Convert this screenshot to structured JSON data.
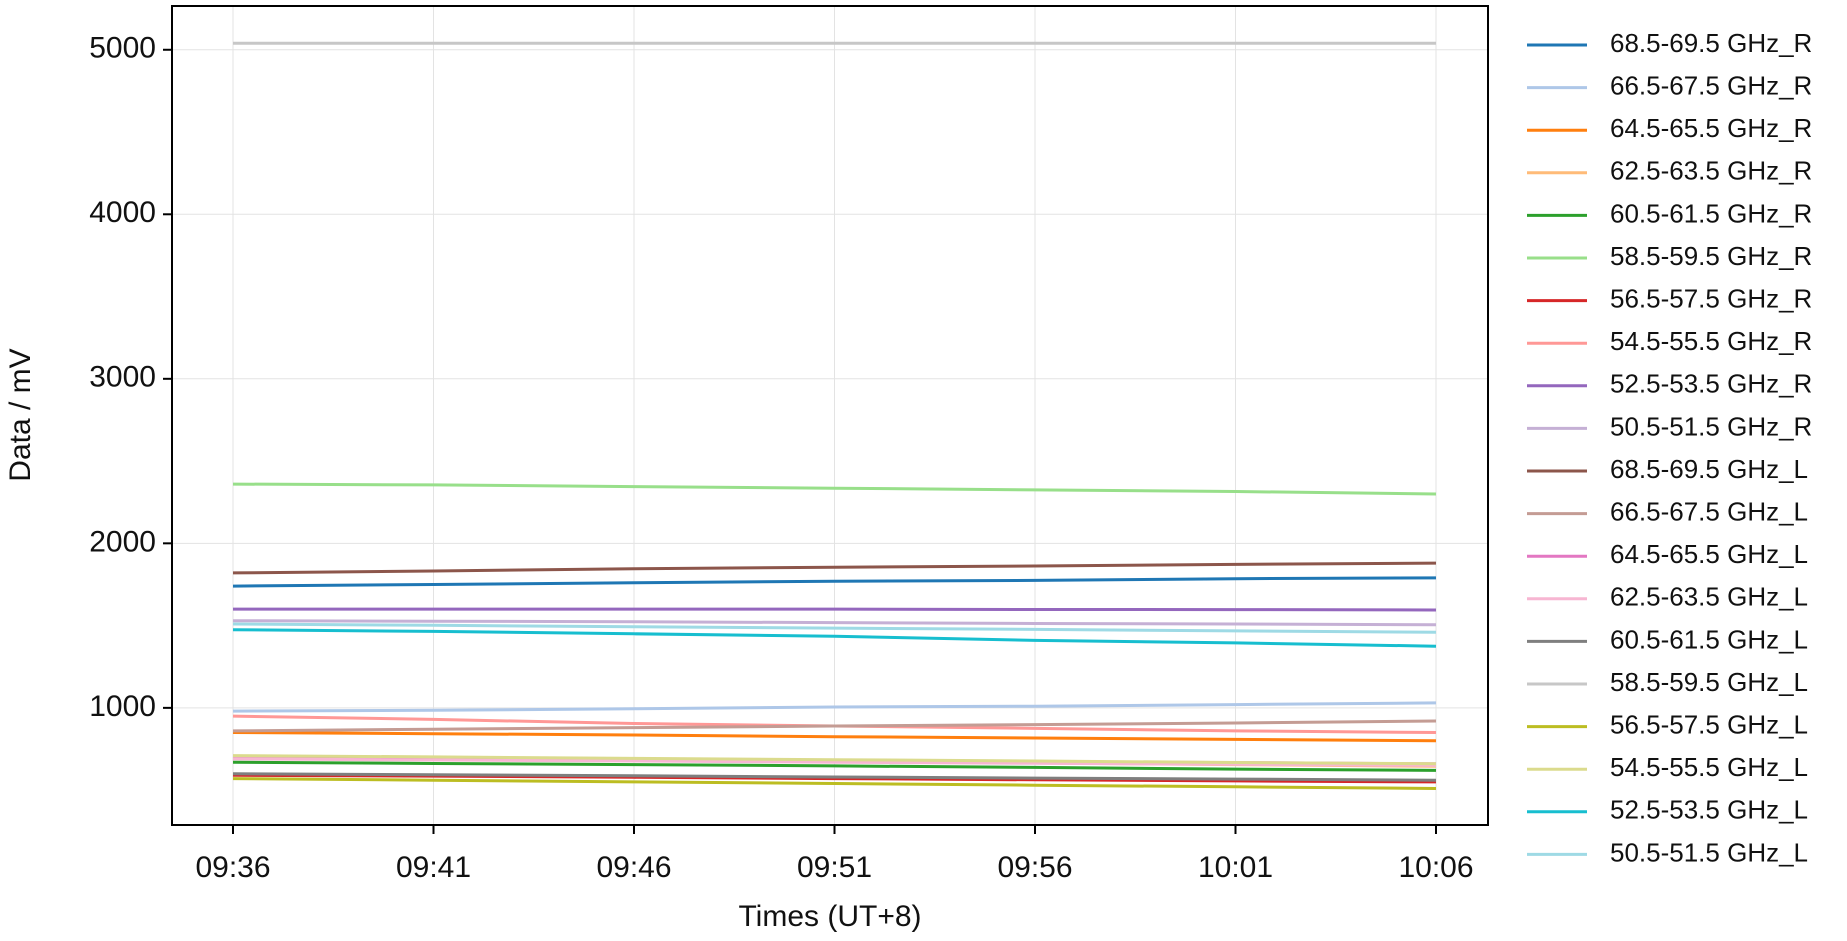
{
  "chart_data": {
    "type": "line",
    "x_label": "Times (UT+8)",
    "y_label": "Data / mV",
    "categories": [
      "09:36",
      "09:41",
      "09:46",
      "09:51",
      "09:56",
      "10:01",
      "10:06"
    ],
    "ylim": [
      288,
      5266
    ],
    "yticks": [
      1000,
      2000,
      3000,
      4000,
      5000
    ],
    "grid": true,
    "legend": "outside-right",
    "series": [
      {
        "name": "68.5-69.5 GHz_R",
        "color": "#1f77b4",
        "values": [
          1740,
          1750,
          1760,
          1770,
          1775,
          1785,
          1790
        ]
      },
      {
        "name": "66.5-67.5 GHz_R",
        "color": "#aec7e8",
        "values": [
          980,
          985,
          995,
          1005,
          1010,
          1020,
          1030
        ]
      },
      {
        "name": "64.5-65.5 GHz_R",
        "color": "#ff7f0e",
        "values": [
          850,
          843,
          835,
          825,
          817,
          808,
          800
        ]
      },
      {
        "name": "62.5-63.5 GHz_R",
        "color": "#ffbb78",
        "values": [
          700,
          690,
          680,
          672,
          665,
          655,
          645
        ]
      },
      {
        "name": "60.5-61.5 GHz_R",
        "color": "#2ca02c",
        "values": [
          670,
          662,
          655,
          647,
          638,
          628,
          620
        ]
      },
      {
        "name": "58.5-59.5 GHz_R",
        "color": "#98df8a",
        "values": [
          2360,
          2355,
          2345,
          2335,
          2325,
          2315,
          2300
        ]
      },
      {
        "name": "56.5-57.5 GHz_R",
        "color": "#d62728",
        "values": [
          590,
          585,
          578,
          570,
          563,
          556,
          550
        ]
      },
      {
        "name": "54.5-55.5 GHz_R",
        "color": "#ff9896",
        "values": [
          950,
          930,
          905,
          890,
          875,
          860,
          850
        ]
      },
      {
        "name": "52.5-53.5 GHz_R",
        "color": "#9467bd",
        "values": [
          1600,
          1600,
          1600,
          1600,
          1598,
          1597,
          1595
        ]
      },
      {
        "name": "50.5-51.5 GHz_R",
        "color": "#c5b0d5",
        "values": [
          1530,
          1527,
          1523,
          1518,
          1513,
          1510,
          1505
        ]
      },
      {
        "name": "68.5-69.5 GHz_L",
        "color": "#8c564b",
        "values": [
          1820,
          1832,
          1845,
          1855,
          1862,
          1872,
          1880
        ]
      },
      {
        "name": "66.5-67.5 GHz_L",
        "color": "#c49c94",
        "values": [
          860,
          870,
          880,
          890,
          898,
          908,
          920
        ]
      },
      {
        "name": "64.5-65.5 GHz_L",
        "color": "#e377c2",
        "values": [
          700,
          693,
          687,
          680,
          673,
          667,
          660
        ]
      },
      {
        "name": "62.5-63.5 GHz_L",
        "color": "#f7b6d2",
        "values": [
          690,
          683,
          677,
          670,
          663,
          657,
          650
        ]
      },
      {
        "name": "60.5-61.5 GHz_L",
        "color": "#7f7f7f",
        "values": [
          600,
          593,
          587,
          580,
          573,
          567,
          560
        ]
      },
      {
        "name": "58.5-59.5 GHz_L",
        "color": "#c7c7c7",
        "values": [
          5040,
          5040,
          5040,
          5040,
          5040,
          5040,
          5040
        ]
      },
      {
        "name": "56.5-57.5 GHz_L",
        "color": "#bcbd22",
        "values": [
          570,
          560,
          550,
          540,
          530,
          520,
          510
        ]
      },
      {
        "name": "54.5-55.5 GHz_L",
        "color": "#dbdb8d",
        "values": [
          710,
          702,
          693,
          685,
          677,
          668,
          660
        ]
      },
      {
        "name": "52.5-53.5 GHz_L",
        "color": "#17becf",
        "values": [
          1475,
          1465,
          1450,
          1435,
          1410,
          1395,
          1375
        ]
      },
      {
        "name": "50.5-51.5 GHz_L",
        "color": "#9edae5",
        "values": [
          1510,
          1502,
          1493,
          1485,
          1477,
          1468,
          1460
        ]
      }
    ]
  }
}
